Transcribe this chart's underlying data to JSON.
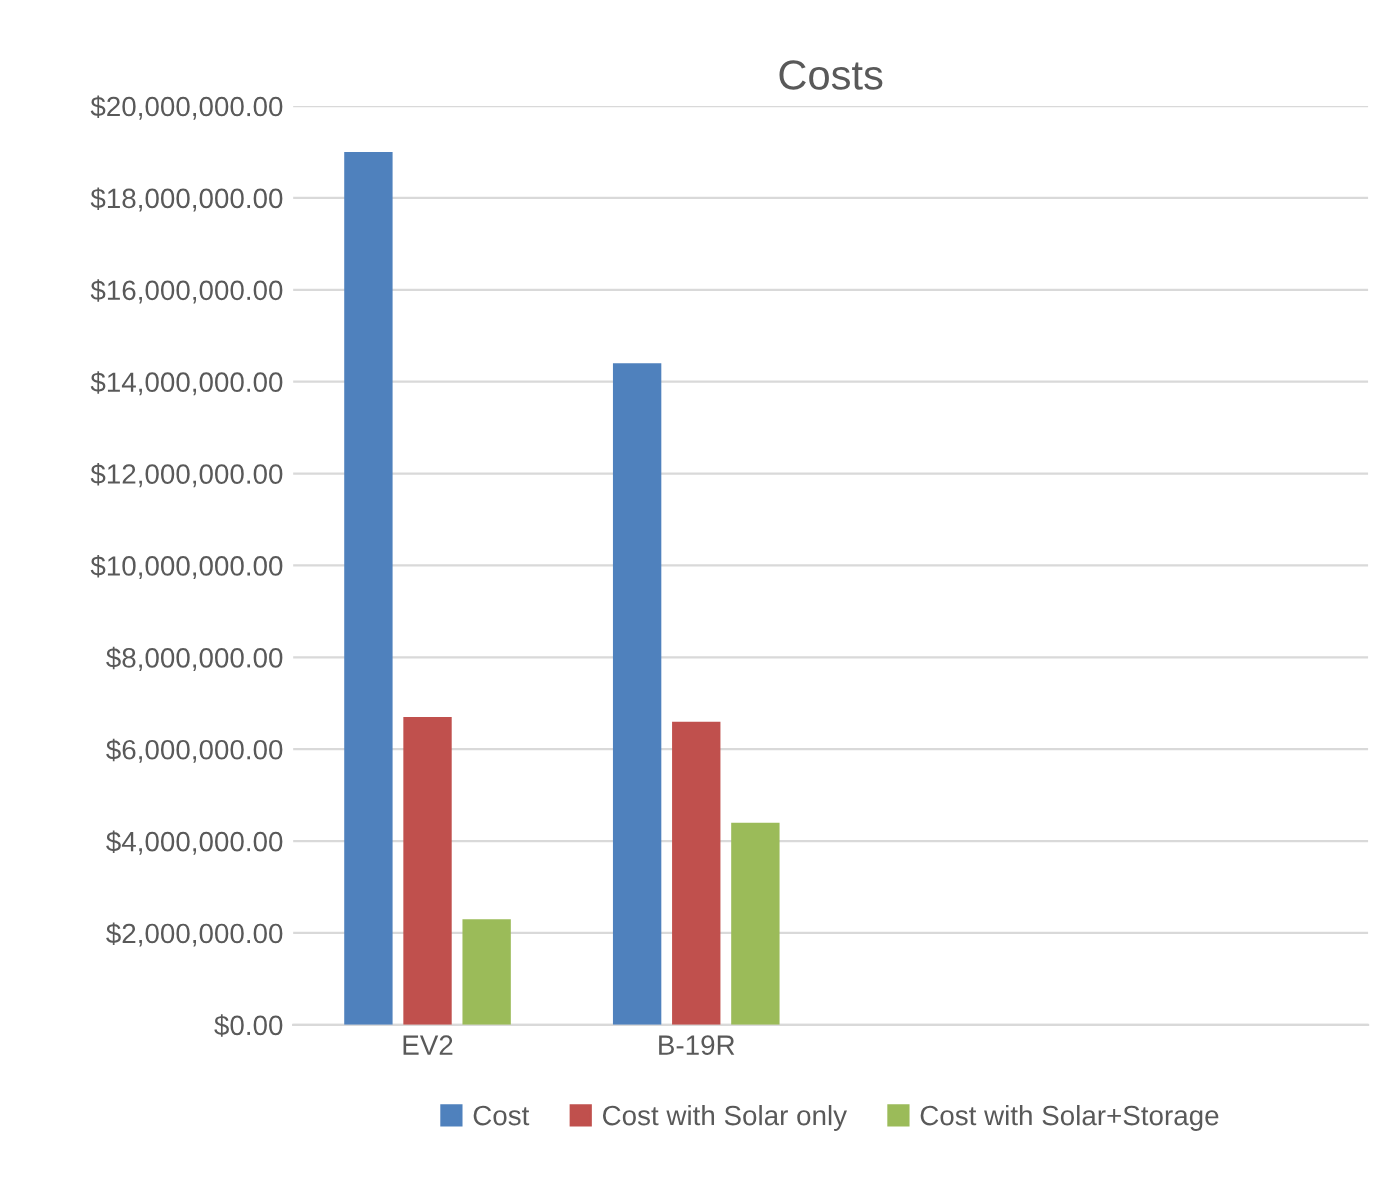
{
  "chart_data": {
    "type": "bar",
    "title": "Costs",
    "categories": [
      "EV2",
      "B-19R",
      null,
      null
    ],
    "series": [
      {
        "name": "Cost",
        "color": "#4f81bd",
        "values": [
          19000000,
          14400000,
          null,
          null
        ]
      },
      {
        "name": "Cost with Solar only",
        "color": "#c0504d",
        "values": [
          6700000,
          6600000,
          null,
          null
        ]
      },
      {
        "name": "Cost with Solar+Storage",
        "color": "#9bbb59",
        "values": [
          2300000,
          4400000,
          null,
          null
        ]
      }
    ],
    "ylim": [
      0,
      20000000
    ],
    "yticks": [
      {
        "value": 0,
        "label": "$0.00"
      },
      {
        "value": 2000000,
        "label": "$2,000,000.00"
      },
      {
        "value": 4000000,
        "label": "$4,000,000.00"
      },
      {
        "value": 6000000,
        "label": "$6,000,000.00"
      },
      {
        "value": 8000000,
        "label": "$8,000,000.00"
      },
      {
        "value": 10000000,
        "label": "$10,000,000.00"
      },
      {
        "value": 12000000,
        "label": "$12,000,000.00"
      },
      {
        "value": 14000000,
        "label": "$14,000,000.00"
      },
      {
        "value": 16000000,
        "label": "$16,000,000.00"
      },
      {
        "value": 18000000,
        "label": "$18,000,000.00"
      },
      {
        "value": 20000000,
        "label": "$20,000,000.00"
      }
    ],
    "grid": "y",
    "legend": "bottom"
  }
}
